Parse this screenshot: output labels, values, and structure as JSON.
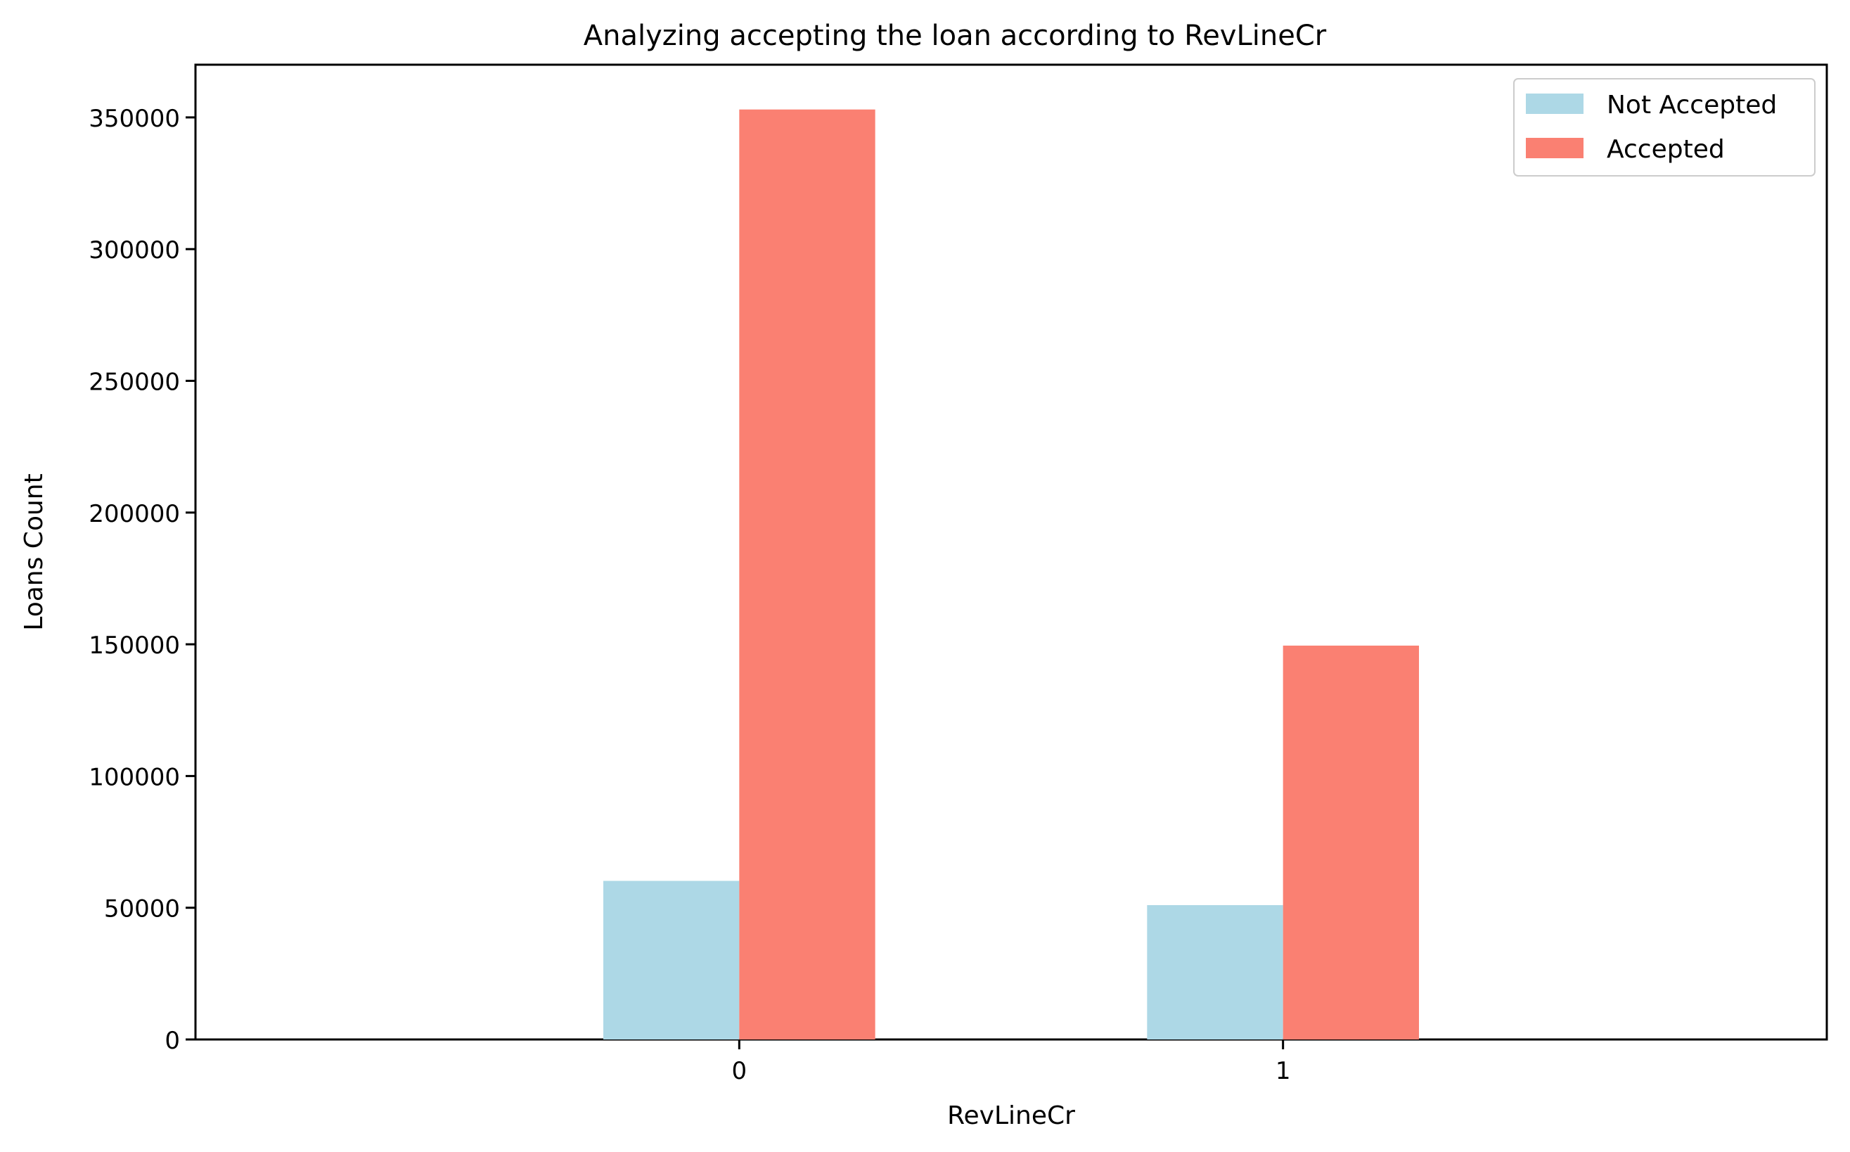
{
  "chart_data": {
    "type": "bar",
    "title": "Analyzing accepting the loan according to RevLineCr",
    "xlabel": "RevLineCr",
    "ylabel": "Loans Count",
    "categories": [
      "0",
      "1"
    ],
    "series": [
      {
        "name": "Not Accepted",
        "color": "#add8e6",
        "values": [
          60200,
          51000
        ]
      },
      {
        "name": "Accepted",
        "color": "#fa8072",
        "values": [
          353000,
          149500
        ]
      }
    ],
    "ylim": [
      0,
      370000
    ],
    "yticks": [
      0,
      50000,
      100000,
      150000,
      200000,
      250000,
      300000,
      350000
    ],
    "grid": false,
    "legend_position": "top-right"
  }
}
